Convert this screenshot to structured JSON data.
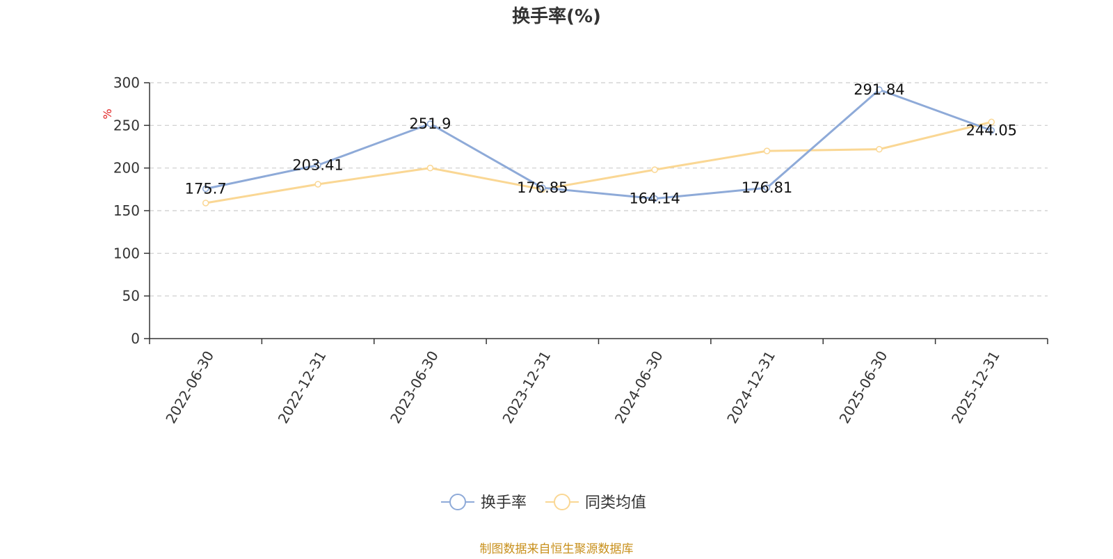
{
  "colors": {
    "series1": "#8eaad8",
    "series2": "#fad794",
    "grid": "#cccccc",
    "axis": "#333333",
    "unit": "#e02020",
    "footer": "#c8901c"
  },
  "footer": "制图数据来自恒生聚源数据库",
  "chart_data": {
    "type": "line",
    "title": "换手率(%)",
    "ylabel": "%",
    "xlabel": "",
    "ylim": [
      0,
      300
    ],
    "yticks": [
      0,
      50,
      100,
      150,
      200,
      250,
      300
    ],
    "grid": true,
    "legend_position": "bottom-center",
    "categories": [
      "2022-06-30",
      "2022-12-31",
      "2023-06-30",
      "2023-12-31",
      "2024-06-30",
      "2024-12-31",
      "2025-06-30",
      "2025-12-31"
    ],
    "series": [
      {
        "name": "换手率",
        "values": [
          175.7,
          203.41,
          251.9,
          176.85,
          164.14,
          176.81,
          291.84,
          244.05
        ],
        "labels": [
          "175.7",
          "203.41",
          "251.9",
          "176.85",
          "164.14",
          "176.81",
          "291.84",
          "244.05"
        ]
      },
      {
        "name": "同类均值",
        "values": [
          159,
          181,
          200,
          175,
          198,
          220,
          222,
          254
        ]
      }
    ]
  }
}
